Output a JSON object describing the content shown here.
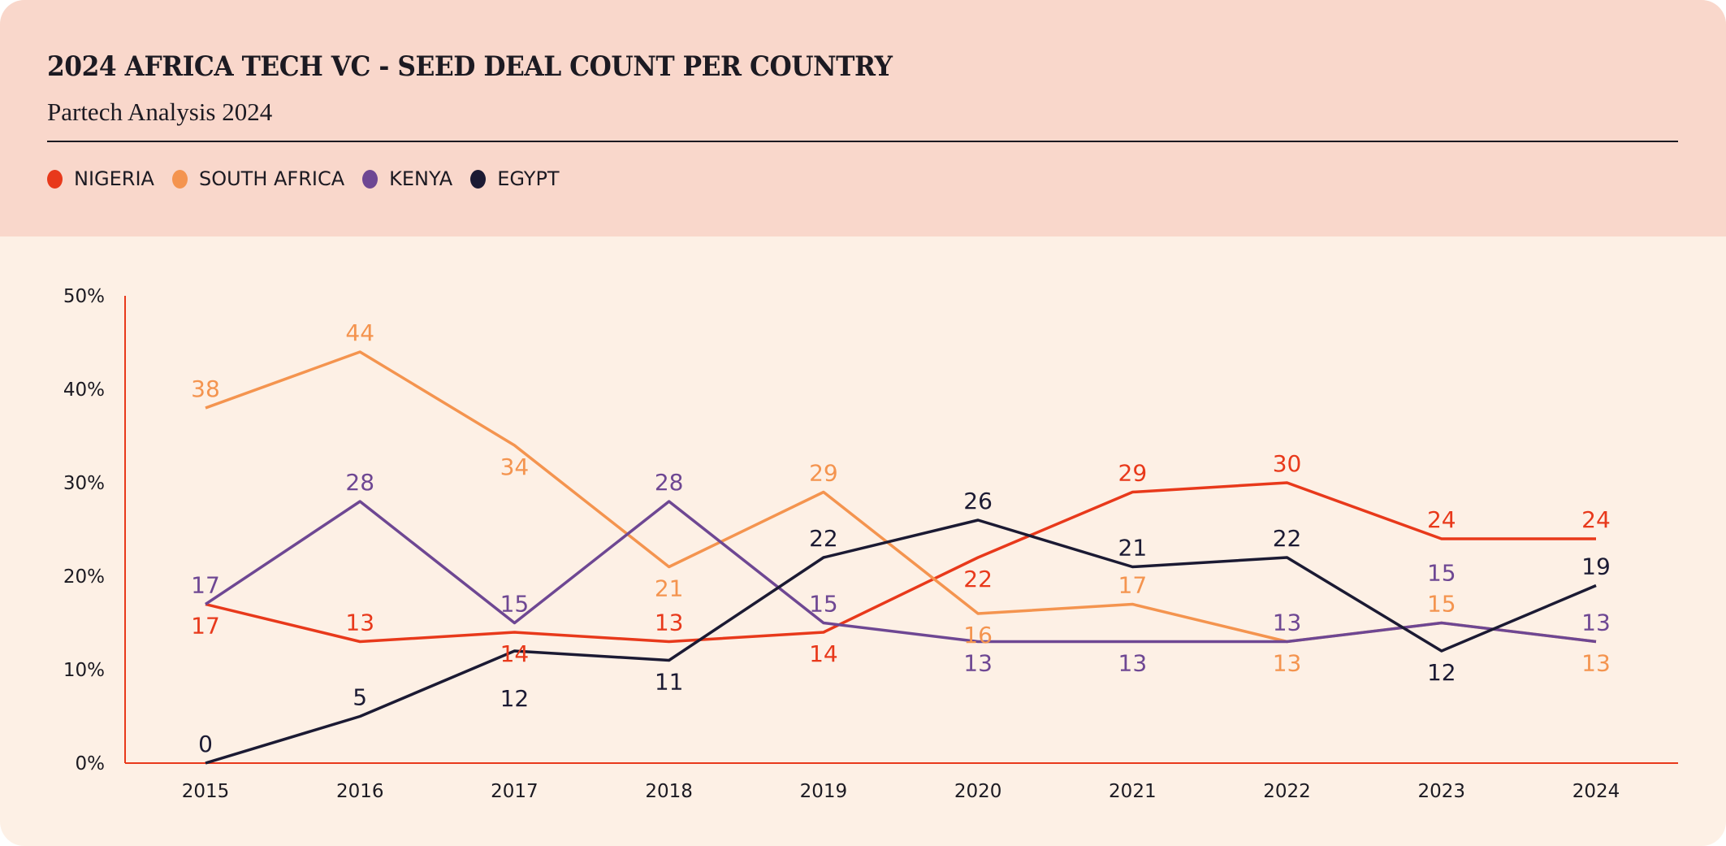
{
  "chart_data": {
    "type": "line",
    "title": "2024 AFRICA TECH VC - SEED DEAL COUNT PER COUNTRY",
    "subtitle": "Partech Analysis 2024",
    "xlabel": "",
    "ylabel": "",
    "categories": [
      "2015",
      "2016",
      "2017",
      "2018",
      "2019",
      "2020",
      "2021",
      "2022",
      "2023",
      "2024"
    ],
    "ylim": [
      0,
      50
    ],
    "yticks": [
      "0%",
      "10%",
      "20%",
      "30%",
      "40%",
      "50%"
    ],
    "grid": false,
    "legend_position": "top-left",
    "series": [
      {
        "name": "NIGERIA",
        "color": "#e8391b",
        "values": [
          17,
          13,
          14,
          13,
          14,
          22,
          29,
          30,
          24,
          24
        ]
      },
      {
        "name": "SOUTH AFRICA",
        "color": "#f4944f",
        "values": [
          38,
          44,
          34,
          21,
          29,
          16,
          17,
          13,
          15,
          13
        ]
      },
      {
        "name": "KENYA",
        "color": "#6e4793",
        "values": [
          17,
          28,
          15,
          28,
          15,
          13,
          13,
          13,
          15,
          13
        ]
      },
      {
        "name": "EGYPT",
        "color": "#1b1a33",
        "values": [
          0,
          5,
          12,
          11,
          22,
          26,
          21,
          22,
          12,
          19
        ]
      }
    ],
    "axis_color": "#e8391b"
  }
}
